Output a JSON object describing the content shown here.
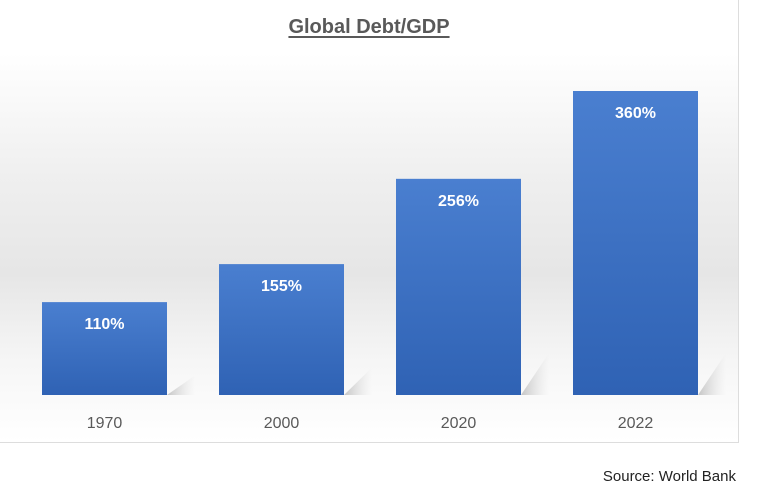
{
  "chart_data": {
    "type": "bar",
    "title": "Global Debt/GDP",
    "categories": [
      "1970",
      "2000",
      "2020",
      "2022"
    ],
    "values": [
      110,
      155,
      256,
      360
    ],
    "data_labels": [
      "110%",
      "155%",
      "256%",
      "360%"
    ],
    "xlabel": "",
    "ylabel": "",
    "ylim": [
      0,
      360
    ],
    "grid": false,
    "bar_color": "#3f72c6",
    "source": "Source: World Bank"
  }
}
